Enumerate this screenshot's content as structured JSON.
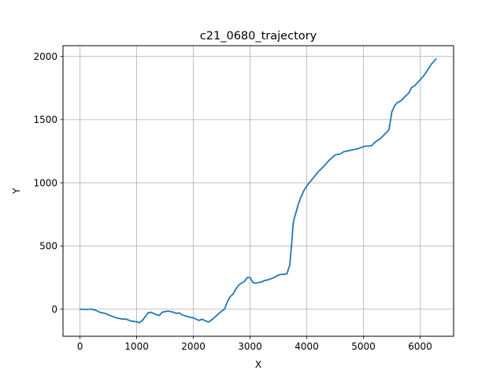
{
  "chart_data": {
    "type": "line",
    "title": "c21_0680_trajectory",
    "xlabel": "X",
    "ylabel": "Y",
    "xlim": [
      -300,
      6590
    ],
    "ylim": [
      -215,
      2085
    ],
    "xticks": [
      0,
      1000,
      2000,
      3000,
      4000,
      5000,
      6000
    ],
    "yticks": [
      0,
      500,
      1000,
      1500,
      2000
    ],
    "xtick_labels": [
      "0",
      "1000",
      "2000",
      "3000",
      "4000",
      "5000",
      "6000"
    ],
    "ytick_labels": [
      "0",
      "500",
      "1000",
      "1500",
      "2000"
    ],
    "grid": true,
    "line_color": "#1f77b4",
    "series": [
      {
        "x": [
          0,
          100,
          200,
          280,
          350,
          450,
          550,
          650,
          750,
          800,
          900,
          1000,
          1050,
          1100,
          1150,
          1200,
          1250,
          1300,
          1350,
          1400,
          1450,
          1500,
          1550,
          1600,
          1650,
          1700,
          1750,
          1800,
          1900,
          2000,
          2050,
          2100,
          2150,
          2200,
          2250,
          2280,
          2350,
          2400,
          2450,
          2500,
          2550,
          2600,
          2650,
          2700,
          2750,
          2800,
          2850,
          2900,
          2950,
          3000,
          3050,
          3100,
          3150,
          3200,
          3250,
          3300,
          3400,
          3500,
          3550,
          3600,
          3650,
          3700,
          3720,
          3740,
          3760,
          3780,
          3800,
          3850,
          3900,
          3950,
          4000,
          4100,
          4200,
          4300,
          4400,
          4500,
          4550,
          4600,
          4650,
          4700,
          4750,
          4800,
          4900,
          5000,
          5050,
          5100,
          5150,
          5200,
          5250,
          5300,
          5400,
          5450,
          5480,
          5500,
          5550,
          5600,
          5650,
          5700,
          5750,
          5800,
          5850,
          5900,
          5950,
          6000,
          6050,
          6100,
          6150,
          6200,
          6250,
          6280
        ],
        "y": [
          0,
          -3,
          0,
          -10,
          -25,
          -35,
          -55,
          -70,
          -80,
          -78,
          -95,
          -100,
          -108,
          -90,
          -60,
          -30,
          -25,
          -35,
          -45,
          -50,
          -25,
          -20,
          -15,
          -20,
          -25,
          -35,
          -30,
          -45,
          -60,
          -70,
          -80,
          -90,
          -80,
          -90,
          -100,
          -100,
          -75,
          -55,
          -35,
          -15,
          0,
          60,
          100,
          120,
          160,
          190,
          205,
          220,
          250,
          250,
          210,
          205,
          210,
          215,
          225,
          230,
          245,
          270,
          275,
          275,
          280,
          350,
          450,
          550,
          680,
          720,
          750,
          830,
          890,
          940,
          975,
          1030,
          1085,
          1130,
          1180,
          1220,
          1225,
          1230,
          1245,
          1250,
          1255,
          1260,
          1270,
          1285,
          1290,
          1290,
          1295,
          1320,
          1335,
          1350,
          1395,
          1420,
          1500,
          1560,
          1610,
          1635,
          1645,
          1665,
          1690,
          1710,
          1755,
          1765,
          1790,
          1815,
          1840,
          1870,
          1905,
          1940,
          1965,
          1980
        ]
      }
    ]
  }
}
